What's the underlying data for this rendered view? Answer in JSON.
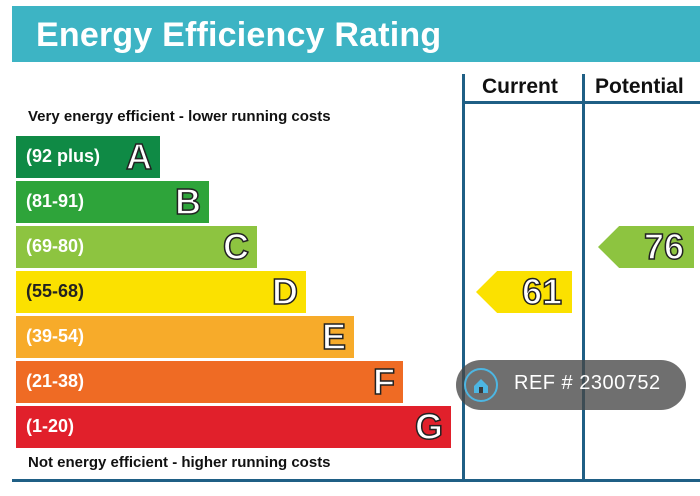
{
  "header": {
    "title": "Energy Efficiency Rating"
  },
  "notes": {
    "top": "Very energy efficient - lower running costs",
    "bottom": "Not energy efficient - higher running costs"
  },
  "columns": {
    "current": "Current",
    "potential": "Potential"
  },
  "chart_data": {
    "type": "bar",
    "title": "Energy Efficiency Rating",
    "bands": [
      {
        "letter": "A",
        "range": "(92 plus)",
        "color": "#0f8a45"
      },
      {
        "letter": "B",
        "range": "(81-91)",
        "color": "#2ea43a"
      },
      {
        "letter": "C",
        "range": "(69-80)",
        "color": "#8dc440"
      },
      {
        "letter": "D",
        "range": "(55-68)",
        "color": "#fbe100"
      },
      {
        "letter": "E",
        "range": "(39-54)",
        "color": "#f7ab2a"
      },
      {
        "letter": "F",
        "range": "(21-38)",
        "color": "#ef6b24"
      },
      {
        "letter": "G",
        "range": "(1-20)",
        "color": "#e1202b"
      }
    ],
    "current": {
      "value": 61,
      "band": "D",
      "color": "#fbe100"
    },
    "potential": {
      "value": 76,
      "band": "C",
      "color": "#8dc440"
    }
  },
  "watermark": {
    "text": "REF # 2300752",
    "icon": "home-icon"
  }
}
